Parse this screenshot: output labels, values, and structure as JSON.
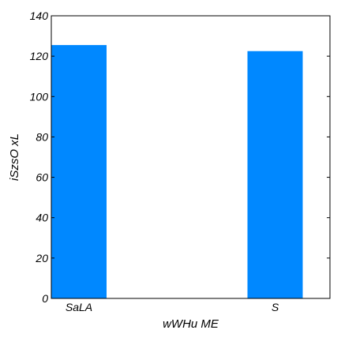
{
  "chart_data": {
    "type": "bar",
    "categories": [
      "SaLA",
      "S"
    ],
    "values": [
      125.5,
      122.5
    ],
    "title": "",
    "xlabel": "wWHu ME",
    "ylabel": "iSzsO xL",
    "ylim": [
      0,
      140
    ],
    "yticks": [
      0,
      20,
      40,
      60,
      80,
      100,
      120,
      140
    ],
    "grid": false,
    "bar_color": "#0088ff"
  }
}
